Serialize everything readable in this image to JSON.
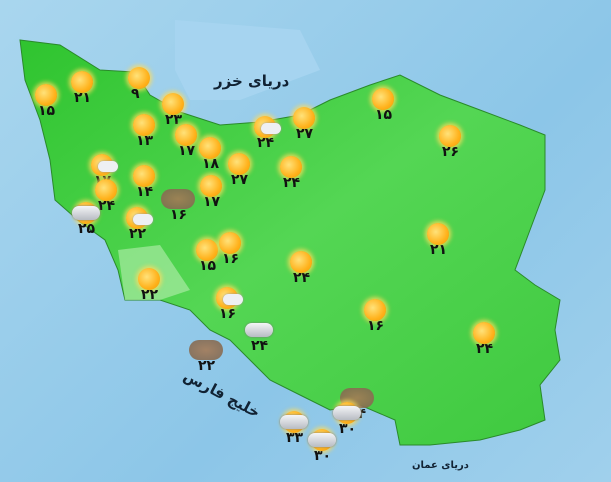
{
  "seas": {
    "caspian": "دریای خزر",
    "persian_gulf": "خلیج فارس",
    "oman": "دریای عمان"
  },
  "colors": {
    "land": "#3fcf3f",
    "sea": "#8cc6e8"
  },
  "stations": [
    {
      "icon": "sun",
      "temp": "۱۵"
    },
    {
      "icon": "sun",
      "temp": "۲۱"
    },
    {
      "icon": "sun",
      "temp": "۹"
    },
    {
      "icon": "sun",
      "temp": "۲۳"
    },
    {
      "icon": "sun",
      "temp": "۱۳"
    },
    {
      "icon": "sun",
      "temp": "۱۷"
    },
    {
      "icon": "sun",
      "temp": "۱۸"
    },
    {
      "icon": "sun",
      "temp": "۲۷"
    },
    {
      "icon": "sun-cloud",
      "temp": "۲۴"
    },
    {
      "icon": "sun",
      "temp": "۲۷"
    },
    {
      "icon": "sun",
      "temp": "۲۴"
    },
    {
      "icon": "sun",
      "temp": "۱۵"
    },
    {
      "icon": "sun",
      "temp": "۲۶"
    },
    {
      "icon": "sun-cloud",
      "temp": "۱۷"
    },
    {
      "icon": "sun",
      "temp": "۱۴"
    },
    {
      "icon": "dust",
      "temp": "۱۶"
    },
    {
      "icon": "sun",
      "temp": "۱۷"
    },
    {
      "icon": "sun",
      "temp": "۲۴"
    },
    {
      "icon": "cloud-sun",
      "temp": "۲۵"
    },
    {
      "icon": "sun-cloud",
      "temp": "۲۲"
    },
    {
      "icon": "sun",
      "temp": "۱۵"
    },
    {
      "icon": "sun",
      "temp": "۱۶"
    },
    {
      "icon": "sun",
      "temp": "۲۴"
    },
    {
      "icon": "sun",
      "temp": "۲۱"
    },
    {
      "icon": "sun",
      "temp": "۲۲"
    },
    {
      "icon": "sun-cloud",
      "temp": "۱۶"
    },
    {
      "icon": "cloud",
      "temp": "۲۴"
    },
    {
      "icon": "dust",
      "temp": "۲۲"
    },
    {
      "icon": "sun",
      "temp": "۱۶"
    },
    {
      "icon": "sun",
      "temp": "۲۴"
    },
    {
      "icon": "dust",
      "temp": "۳۴"
    },
    {
      "icon": "cloud-sun",
      "temp": "۳۰"
    },
    {
      "icon": "cloud-sun",
      "temp": "۳۳"
    },
    {
      "icon": "cloud-sun",
      "temp": "۳۰"
    }
  ]
}
